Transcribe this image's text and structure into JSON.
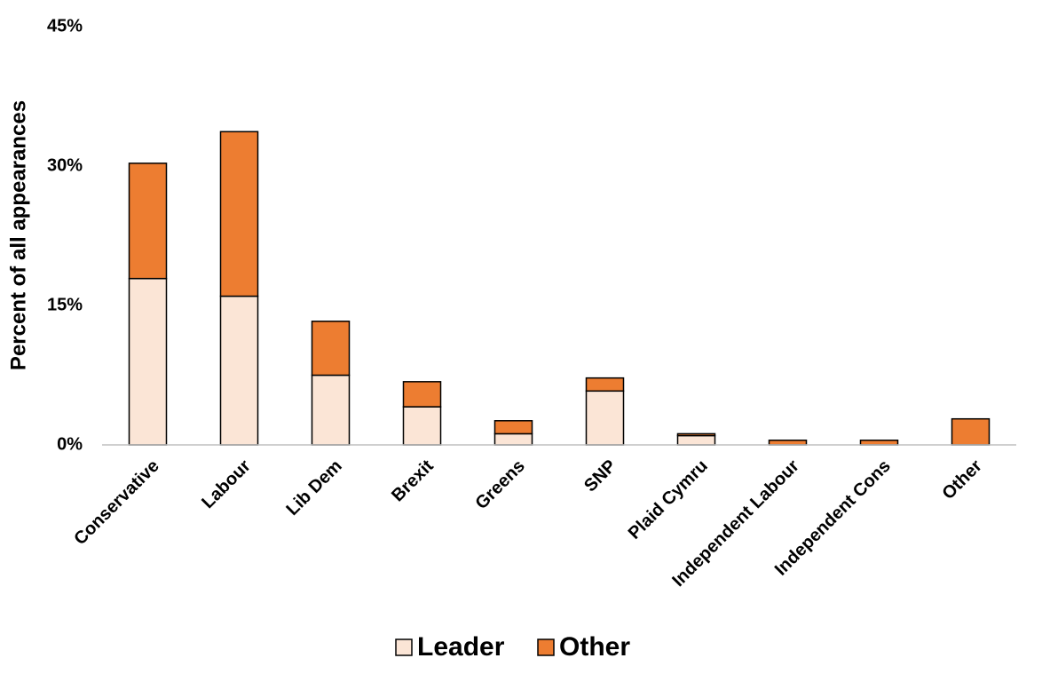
{
  "chart_data": {
    "type": "bar",
    "stacked": true,
    "y_label": "Percent of all appearances",
    "categories": [
      "Conservative",
      "Labour",
      "Lib Dem",
      "Brexit",
      "Greens",
      "SNP",
      "Plaid Cymru",
      "Independent Labour",
      "Independent Cons",
      "Other"
    ],
    "series": [
      {
        "name": "Leader",
        "color": "#FBE5D6",
        "values": [
          17.9,
          16.0,
          7.5,
          4.1,
          1.2,
          5.8,
          1.0,
          0,
          0,
          0
        ]
      },
      {
        "name": "Other",
        "color": "#ED7D31",
        "values": [
          12.4,
          17.7,
          5.8,
          2.7,
          1.4,
          1.4,
          0.2,
          0.5,
          0.5,
          2.8
        ]
      }
    ],
    "ylim": [
      0,
      45
    ],
    "yticks": [
      {
        "value": 0,
        "label": "0%"
      },
      {
        "value": 15,
        "label": "15%"
      },
      {
        "value": 30,
        "label": "30%"
      },
      {
        "value": 45,
        "label": "45%"
      }
    ],
    "grid": false,
    "legend": "bottom"
  }
}
